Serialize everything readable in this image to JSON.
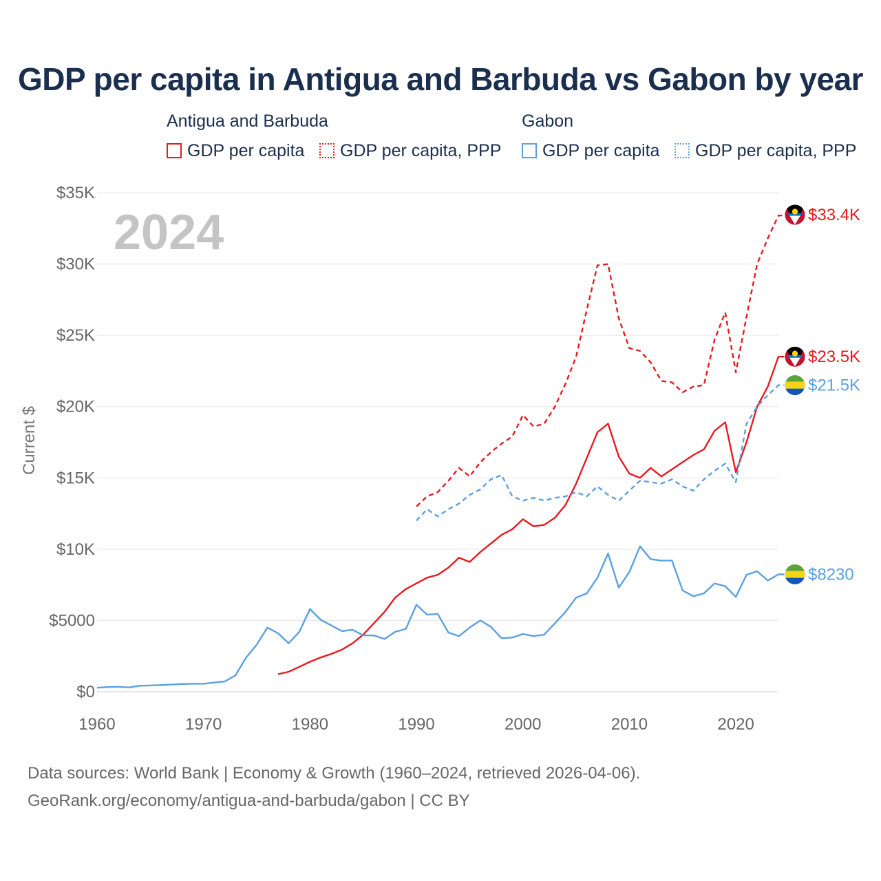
{
  "title": "GDP per capita in Antigua and Barbuda vs Gabon by year",
  "legend": {
    "groups": [
      {
        "name": "Antigua and Barbuda",
        "items": [
          {
            "label": "GDP per capita",
            "style": "solid",
            "color": "#e8191f"
          },
          {
            "label": "GDP per capita, PPP",
            "style": "dotted",
            "color": "#e8191f"
          }
        ]
      },
      {
        "name": "Gabon",
        "items": [
          {
            "label": "GDP per capita",
            "style": "solid",
            "color": "#5aa0e0"
          },
          {
            "label": "GDP per capita, PPP",
            "style": "dotted",
            "color": "#5aa0e0"
          }
        ]
      }
    ]
  },
  "year_watermark": "2024",
  "footer": {
    "line1": "Data sources: World Bank | Economy & Growth (1960–2024, retrieved 2026-04-06).",
    "line2": "GeoRank.org/economy/antigua-and-barbuda/gabon | CC BY"
  },
  "chart_data": {
    "type": "line",
    "title": "GDP per capita in Antigua and Barbuda vs Gabon by year",
    "xlabel": "",
    "ylabel": "Current $",
    "xlim": [
      1960,
      2024
    ],
    "ylim": [
      0,
      35000
    ],
    "x_ticks": [
      {
        "value": 1960,
        "label": "1960"
      },
      {
        "value": 1970,
        "label": "1970"
      },
      {
        "value": 1980,
        "label": "1980"
      },
      {
        "value": 1990,
        "label": "1990"
      },
      {
        "value": 2000,
        "label": "2000"
      },
      {
        "value": 2010,
        "label": "2010"
      },
      {
        "value": 2020,
        "label": "2020"
      }
    ],
    "y_ticks": [
      {
        "value": 0,
        "label": "$0"
      },
      {
        "value": 5000,
        "label": "$5000"
      },
      {
        "value": 10000,
        "label": "$10K"
      },
      {
        "value": 15000,
        "label": "$15K"
      },
      {
        "value": 20000,
        "label": "$20K"
      },
      {
        "value": 25000,
        "label": "$25K"
      },
      {
        "value": 30000,
        "label": "$30K"
      },
      {
        "value": 35000,
        "label": "$35K"
      }
    ],
    "grid": true,
    "series": [
      {
        "name": "Antigua and Barbuda — GDP per capita, PPP",
        "country": "Antigua and Barbuda",
        "color": "#e8191f",
        "dash": "dashed",
        "end_label": "$33.4K",
        "flag": "antigua-and-barbuda",
        "x": [
          1990,
          1991,
          1992,
          1993,
          1994,
          1995,
          1996,
          1997,
          1998,
          1999,
          2000,
          2001,
          2002,
          2003,
          2004,
          2005,
          2006,
          2007,
          2008,
          2009,
          2010,
          2011,
          2012,
          2013,
          2014,
          2015,
          2016,
          2017,
          2018,
          2019,
          2020,
          2021,
          2022,
          2023,
          2024
        ],
        "values": [
          13000,
          13700,
          14000,
          14800,
          15700,
          15100,
          16100,
          16800,
          17400,
          17900,
          19400,
          18600,
          18800,
          20000,
          21600,
          23500,
          26800,
          29900,
          30000,
          26200,
          24100,
          23900,
          23100,
          21800,
          21700,
          21000,
          21400,
          21500,
          24700,
          26600,
          22400,
          26300,
          30000,
          31800,
          33400
        ]
      },
      {
        "name": "Antigua and Barbuda — GDP per capita",
        "country": "Antigua and Barbuda",
        "color": "#e8191f",
        "dash": "solid",
        "end_label": "$23.5K",
        "flag": "antigua-and-barbuda",
        "x": [
          1977,
          1978,
          1979,
          1980,
          1981,
          1982,
          1983,
          1984,
          1985,
          1986,
          1987,
          1988,
          1989,
          1990,
          1991,
          1992,
          1993,
          1994,
          1995,
          1996,
          1997,
          1998,
          1999,
          2000,
          2001,
          2002,
          2003,
          2004,
          2005,
          2006,
          2007,
          2008,
          2009,
          2010,
          2011,
          2012,
          2013,
          2014,
          2015,
          2016,
          2017,
          2018,
          2019,
          2020,
          2021,
          2022,
          2023,
          2024
        ],
        "values": [
          1230,
          1400,
          1750,
          2100,
          2400,
          2650,
          2950,
          3400,
          4000,
          4800,
          5600,
          6600,
          7200,
          7600,
          8000,
          8200,
          8700,
          9400,
          9100,
          9800,
          10400,
          11000,
          11400,
          12100,
          11600,
          11700,
          12200,
          13100,
          14600,
          16400,
          18200,
          18800,
          16500,
          15300,
          15000,
          15700,
          15100,
          15600,
          16100,
          16600,
          17000,
          18300,
          18900,
          15400,
          17500,
          20000,
          21400,
          23500
        ]
      },
      {
        "name": "Gabon — GDP per capita, PPP",
        "country": "Gabon",
        "color": "#5aa0e0",
        "dash": "dashed",
        "end_label": "$21.5K",
        "flag": "gabon",
        "x": [
          1990,
          1991,
          1992,
          1993,
          1994,
          1995,
          1996,
          1997,
          1998,
          1999,
          2000,
          2001,
          2002,
          2003,
          2004,
          2005,
          2006,
          2007,
          2008,
          2009,
          2010,
          2011,
          2012,
          2013,
          2014,
          2015,
          2016,
          2017,
          2018,
          2019,
          2020,
          2021,
          2022,
          2023,
          2024
        ],
        "values": [
          12000,
          12800,
          12300,
          12800,
          13200,
          13800,
          14200,
          14900,
          15200,
          13700,
          13400,
          13600,
          13400,
          13600,
          13700,
          14000,
          13700,
          14400,
          13800,
          13400,
          14100,
          14800,
          14700,
          14600,
          14900,
          14400,
          14100,
          14900,
          15500,
          16000,
          14700,
          18800,
          20000,
          20800,
          21500
        ]
      },
      {
        "name": "Gabon — GDP per capita",
        "country": "Gabon",
        "color": "#5aa0e0",
        "dash": "solid",
        "end_label": "$8230",
        "flag": "gabon",
        "x": [
          1960,
          1961,
          1962,
          1963,
          1964,
          1965,
          1966,
          1967,
          1968,
          1969,
          1970,
          1971,
          1972,
          1973,
          1974,
          1975,
          1976,
          1977,
          1978,
          1979,
          1980,
          1981,
          1982,
          1983,
          1984,
          1985,
          1986,
          1987,
          1988,
          1989,
          1990,
          1991,
          1992,
          1993,
          1994,
          1995,
          1996,
          1997,
          1998,
          1999,
          2000,
          2001,
          2002,
          2003,
          2004,
          2005,
          2006,
          2007,
          2008,
          2009,
          2010,
          2011,
          2012,
          2013,
          2014,
          2015,
          2016,
          2017,
          2018,
          2019,
          2020,
          2021,
          2022,
          2023,
          2024
        ],
        "values": [
          280,
          330,
          350,
          300,
          420,
          440,
          470,
          500,
          540,
          560,
          560,
          640,
          720,
          1150,
          2400,
          3300,
          4500,
          4100,
          3400,
          4200,
          5800,
          5050,
          4650,
          4250,
          4350,
          3950,
          3950,
          3700,
          4200,
          4400,
          6100,
          5400,
          5450,
          4150,
          3900,
          4500,
          5000,
          4550,
          3750,
          3800,
          4050,
          3900,
          4000,
          4800,
          5600,
          6600,
          6900,
          8000,
          9700,
          7300,
          8400,
          10200,
          9300,
          9200,
          9200,
          7100,
          6700,
          6900,
          7600,
          7400,
          6650,
          8200,
          8450,
          7800,
          8230
        ]
      }
    ]
  }
}
